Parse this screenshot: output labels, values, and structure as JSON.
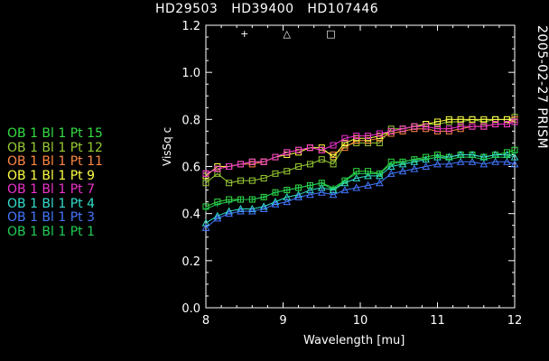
{
  "chart_data": {
    "type": "line",
    "title": "HD29503   HD39400   HD107446",
    "side_label": "2005-02-27 PRISM",
    "xlabel": "Wavelength [mu]",
    "ylabel": "VisSq c",
    "xlim": [
      8,
      12
    ],
    "ylim": [
      0.0,
      1.2
    ],
    "xticks": [
      "8",
      "9",
      "10",
      "11",
      "12"
    ],
    "yticks": [
      "0.0",
      "0.2",
      "0.4",
      "0.6",
      "0.8",
      "1.0",
      "1.2"
    ],
    "grid": false,
    "legend_position": "left",
    "calibrators": [
      {
        "symbol": "+",
        "x": 8.5,
        "y": 1.17
      },
      {
        "symbol": "△",
        "x": 9.05,
        "y": 1.17
      },
      {
        "symbol": "□",
        "x": 9.62,
        "y": 1.17
      }
    ],
    "x": [
      8.0,
      8.15,
      8.3,
      8.45,
      8.6,
      8.75,
      8.9,
      9.05,
      9.2,
      9.35,
      9.5,
      9.65,
      9.8,
      9.95,
      10.1,
      10.25,
      10.4,
      10.55,
      10.7,
      10.85,
      11.0,
      11.15,
      11.3,
      11.45,
      11.6,
      11.75,
      11.9,
      12.0
    ],
    "series": [
      {
        "name": "OB 1 Bl 1 Pt 15",
        "color": "#33dd44",
        "values": [
          0.43,
          0.45,
          0.46,
          0.46,
          0.46,
          0.47,
          0.49,
          0.5,
          0.51,
          0.52,
          0.53,
          0.5,
          0.54,
          0.58,
          0.58,
          0.57,
          0.62,
          0.62,
          0.63,
          0.64,
          0.65,
          0.64,
          0.65,
          0.65,
          0.64,
          0.65,
          0.66,
          0.67
        ]
      },
      {
        "name": "OB 1 Bl 1 Pt 12",
        "color": "#99cc33",
        "values": [
          0.53,
          0.57,
          0.53,
          0.54,
          0.54,
          0.55,
          0.57,
          0.58,
          0.6,
          0.61,
          0.63,
          0.61,
          0.69,
          0.7,
          0.7,
          0.7,
          0.76,
          0.76,
          0.77,
          0.78,
          0.78,
          0.79,
          0.79,
          0.8,
          0.79,
          0.8,
          0.8,
          0.81
        ]
      },
      {
        "name": "OB 1 Bl 1 Pt 11",
        "color": "#ff8844",
        "values": [
          0.57,
          0.59,
          0.6,
          0.61,
          0.61,
          0.62,
          0.64,
          0.66,
          0.67,
          0.68,
          0.67,
          0.65,
          0.68,
          0.71,
          0.71,
          0.72,
          0.74,
          0.75,
          0.76,
          0.76,
          0.75,
          0.75,
          0.76,
          0.77,
          0.77,
          0.78,
          0.78,
          0.8
        ]
      },
      {
        "name": "OB 1 Bl 1 Pt 9",
        "color": "#ffff44",
        "values": [
          0.56,
          0.6,
          0.6,
          0.61,
          0.62,
          0.62,
          0.64,
          0.65,
          0.66,
          0.68,
          0.68,
          0.64,
          0.7,
          0.72,
          0.72,
          0.73,
          0.75,
          0.76,
          0.77,
          0.78,
          0.79,
          0.8,
          0.8,
          0.8,
          0.8,
          0.8,
          0.8,
          0.79
        ]
      },
      {
        "name": "OB 1 Bl 1 Pt 7",
        "color": "#ee33cc",
        "values": [
          0.57,
          0.59,
          0.6,
          0.61,
          0.62,
          0.62,
          0.64,
          0.66,
          0.67,
          0.68,
          0.67,
          0.69,
          0.72,
          0.73,
          0.73,
          0.74,
          0.75,
          0.76,
          0.77,
          0.77,
          0.76,
          0.76,
          0.77,
          0.77,
          0.77,
          0.78,
          0.78,
          0.79
        ]
      },
      {
        "name": "OB 1 Bl 1 Pt 4",
        "color": "#33ddcc",
        "values": [
          0.36,
          0.39,
          0.41,
          0.42,
          0.42,
          0.43,
          0.45,
          0.47,
          0.48,
          0.5,
          0.51,
          0.5,
          0.53,
          0.55,
          0.56,
          0.56,
          0.6,
          0.61,
          0.62,
          0.63,
          0.64,
          0.64,
          0.65,
          0.65,
          0.64,
          0.65,
          0.65,
          0.64
        ]
      },
      {
        "name": "OB 1 Bl 1 Pt 3",
        "color": "#4477ff",
        "values": [
          0.34,
          0.38,
          0.4,
          0.41,
          0.41,
          0.42,
          0.44,
          0.45,
          0.47,
          0.48,
          0.49,
          0.48,
          0.5,
          0.51,
          0.52,
          0.53,
          0.57,
          0.58,
          0.59,
          0.6,
          0.61,
          0.61,
          0.62,
          0.62,
          0.61,
          0.62,
          0.62,
          0.61
        ]
      },
      {
        "name": "OB 1 Bl 1 Pt 1",
        "color": "#22cc55",
        "values": [
          0.42,
          0.44,
          0.45,
          0.46,
          0.46,
          0.47,
          0.49,
          0.5,
          0.51,
          0.52,
          0.53,
          0.51,
          0.54,
          0.57,
          0.57,
          0.57,
          0.61,
          0.62,
          0.63,
          0.63,
          0.64,
          0.63,
          0.64,
          0.64,
          0.63,
          0.64,
          0.64,
          0.66
        ]
      }
    ]
  }
}
